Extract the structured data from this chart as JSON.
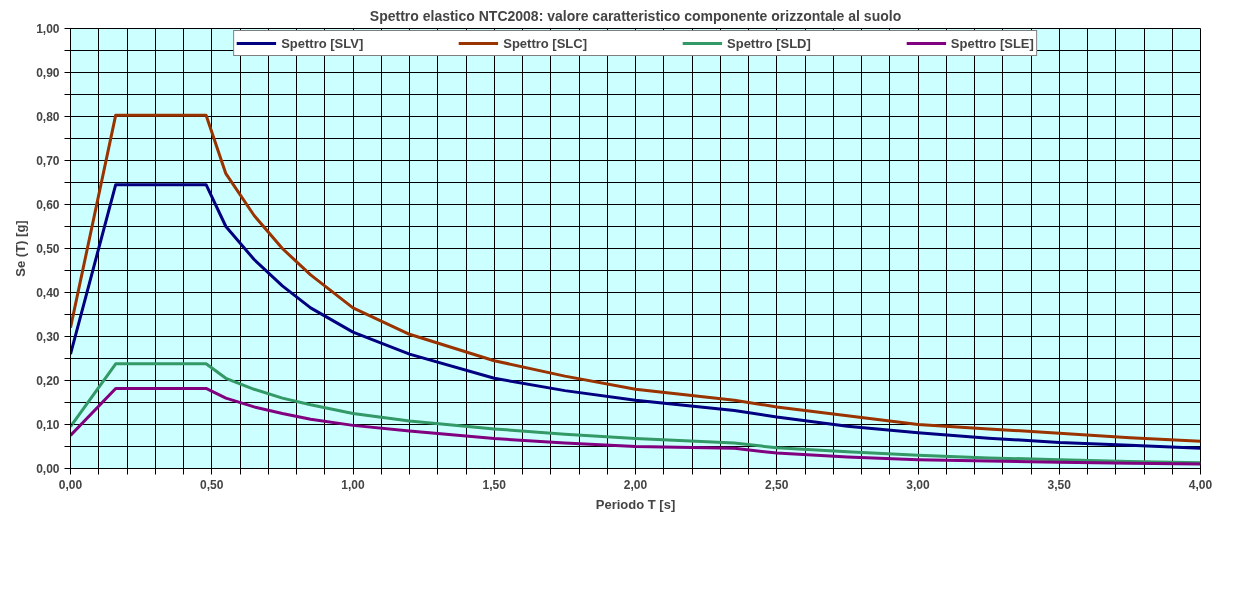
{
  "chart_data": {
    "type": "line",
    "title": "Spettro elastico NTC2008: valore caratteristico componente orizzontale al suolo",
    "xlabel": "Periodo T [s]",
    "ylabel": "Se (T) [g]",
    "x": [
      0,
      0.16,
      0.48,
      0.55,
      0.65,
      0.75,
      0.85,
      1.0,
      1.2,
      1.5,
      1.75,
      2.0,
      2.35,
      2.5,
      2.75,
      3.0,
      3.25,
      3.5,
      3.75,
      4.0
    ],
    "series": [
      {
        "name": "Spettro [SLV]",
        "color": "#000080",
        "values": [
          0.26,
          0.645,
          0.645,
          0.55,
          0.475,
          0.415,
          0.365,
          0.31,
          0.26,
          0.205,
          0.177,
          0.155,
          0.132,
          0.117,
          0.096,
          0.081,
          0.069,
          0.059,
          0.053,
          0.046
        ]
      },
      {
        "name": "Spettro [SLC]",
        "color": "#993300",
        "values": [
          0.32,
          0.803,
          0.803,
          0.67,
          0.575,
          0.5,
          0.44,
          0.365,
          0.305,
          0.245,
          0.21,
          0.18,
          0.155,
          0.14,
          0.12,
          0.1,
          0.09,
          0.08,
          0.07,
          0.062
        ]
      },
      {
        "name": "Spettro [SLD]",
        "color": "#339966",
        "values": [
          0.095,
          0.238,
          0.238,
          0.205,
          0.18,
          0.16,
          0.145,
          0.125,
          0.108,
          0.09,
          0.078,
          0.068,
          0.058,
          0.047,
          0.038,
          0.03,
          0.024,
          0.02,
          0.016,
          0.013
        ]
      },
      {
        "name": "Spettro [SLE]",
        "color": "#800080",
        "values": [
          0.075,
          0.182,
          0.182,
          0.16,
          0.14,
          0.125,
          0.112,
          0.098,
          0.085,
          0.068,
          0.058,
          0.05,
          0.046,
          0.035,
          0.026,
          0.02,
          0.017,
          0.014,
          0.012,
          0.01
        ]
      }
    ],
    "xlim": [
      0,
      4
    ],
    "ylim": [
      0,
      1
    ],
    "xticks": [
      {
        "value": 0,
        "label": "0,00"
      },
      {
        "value": 0.1,
        "label": null
      },
      {
        "value": 0.2,
        "label": null
      },
      {
        "value": 0.3,
        "label": null
      },
      {
        "value": 0.4,
        "label": null
      },
      {
        "value": 0.5,
        "label": "0,50"
      },
      {
        "value": 0.6,
        "label": null
      },
      {
        "value": 0.7,
        "label": null
      },
      {
        "value": 0.8,
        "label": null
      },
      {
        "value": 0.9,
        "label": null
      },
      {
        "value": 1,
        "label": "1,00"
      },
      {
        "value": 1.1,
        "label": null
      },
      {
        "value": 1.2,
        "label": null
      },
      {
        "value": 1.3,
        "label": null
      },
      {
        "value": 1.4,
        "label": null
      },
      {
        "value": 1.5,
        "label": "1,50"
      },
      {
        "value": 1.6,
        "label": null
      },
      {
        "value": 1.7,
        "label": null
      },
      {
        "value": 1.8,
        "label": null
      },
      {
        "value": 1.9,
        "label": null
      },
      {
        "value": 2,
        "label": "2,00"
      },
      {
        "value": 2.1,
        "label": null
      },
      {
        "value": 2.2,
        "label": null
      },
      {
        "value": 2.3,
        "label": null
      },
      {
        "value": 2.4,
        "label": null
      },
      {
        "value": 2.5,
        "label": "2,50"
      },
      {
        "value": 2.6,
        "label": null
      },
      {
        "value": 2.7,
        "label": null
      },
      {
        "value": 2.8,
        "label": null
      },
      {
        "value": 2.9,
        "label": null
      },
      {
        "value": 3,
        "label": "3,00"
      },
      {
        "value": 3.1,
        "label": null
      },
      {
        "value": 3.2,
        "label": null
      },
      {
        "value": 3.3,
        "label": null
      },
      {
        "value": 3.4,
        "label": null
      },
      {
        "value": 3.5,
        "label": "3,50"
      },
      {
        "value": 3.6,
        "label": null
      },
      {
        "value": 3.7,
        "label": null
      },
      {
        "value": 3.8,
        "label": null
      },
      {
        "value": 3.9,
        "label": null
      },
      {
        "value": 4,
        "label": "4,00"
      }
    ],
    "yticks": [
      {
        "value": 0,
        "label": "0,00"
      },
      {
        "value": 0.05,
        "label": null
      },
      {
        "value": 0.1,
        "label": "0,10"
      },
      {
        "value": 0.15,
        "label": null
      },
      {
        "value": 0.2,
        "label": "0,20"
      },
      {
        "value": 0.25,
        "label": null
      },
      {
        "value": 0.3,
        "label": "0,30"
      },
      {
        "value": 0.35,
        "label": null
      },
      {
        "value": 0.4,
        "label": "0,40"
      },
      {
        "value": 0.45,
        "label": null
      },
      {
        "value": 0.5,
        "label": "0,50"
      },
      {
        "value": 0.55,
        "label": null
      },
      {
        "value": 0.6,
        "label": "0,60"
      },
      {
        "value": 0.65,
        "label": null
      },
      {
        "value": 0.7,
        "label": "0,70"
      },
      {
        "value": 0.75,
        "label": null
      },
      {
        "value": 0.8,
        "label": "0,80"
      },
      {
        "value": 0.85,
        "label": null
      },
      {
        "value": 0.9,
        "label": "0,90"
      },
      {
        "value": 0.95,
        "label": null
      },
      {
        "value": 1,
        "label": "1,00"
      }
    ],
    "grid": true,
    "legend": "top",
    "marker": "none",
    "line_style": "solid"
  }
}
